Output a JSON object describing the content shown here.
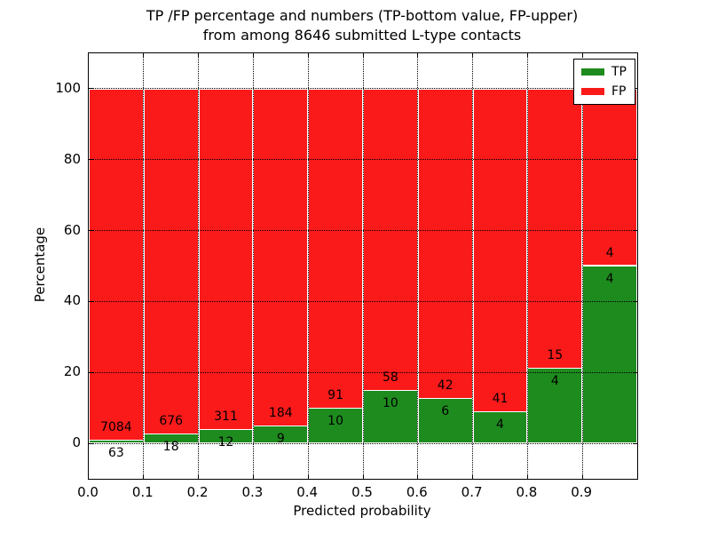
{
  "chart": {
    "title_line1": "TP /FP percentage and numbers (TP-bottom value, FP-upper)",
    "title_line2": "from among 8646 submitted L-type contacts",
    "xlabel": "Predicted probability",
    "ylabel": "Percentage"
  },
  "chart_data": {
    "type": "bar",
    "stacked": true,
    "normalized": "each bar totals 100%",
    "title": "TP /FP percentage and numbers (TP-bottom value, FP-upper) from among 8646 submitted L-type contacts",
    "xlabel": "Predicted probability",
    "ylabel": "Percentage",
    "total_contacts": 8646,
    "xlim": [
      0.0,
      1.0
    ],
    "ylim": [
      -10,
      110
    ],
    "x_ticks": [
      "0.0",
      "0.1",
      "0.2",
      "0.3",
      "0.4",
      "0.5",
      "0.6",
      "0.7",
      "0.8",
      "0.9"
    ],
    "y_ticks": [
      0,
      20,
      40,
      60,
      80,
      100
    ],
    "grid": "dotted",
    "legend_position": "upper right",
    "series": [
      {
        "name": "TP",
        "color": "#1e8b1e",
        "values": [
          63,
          18,
          12,
          9,
          10,
          10,
          6,
          4,
          4,
          4
        ]
      },
      {
        "name": "FP",
        "color": "#fa1a1a",
        "values": [
          7084,
          676,
          311,
          184,
          91,
          58,
          42,
          41,
          15,
          4
        ]
      }
    ],
    "bins": [
      {
        "range": "0.0-0.1",
        "tp": 63,
        "fp": 7084,
        "tp_percent": 0.88
      },
      {
        "range": "0.1-0.2",
        "tp": 18,
        "fp": 676,
        "tp_percent": 2.59
      },
      {
        "range": "0.2-0.3",
        "tp": 12,
        "fp": 311,
        "tp_percent": 3.72
      },
      {
        "range": "0.3-0.4",
        "tp": 9,
        "fp": 184,
        "tp_percent": 4.66
      },
      {
        "range": "0.4-0.5",
        "tp": 10,
        "fp": 91,
        "tp_percent": 9.9
      },
      {
        "range": "0.5-0.6",
        "tp": 10,
        "fp": 58,
        "tp_percent": 14.71
      },
      {
        "range": "0.6-0.7",
        "tp": 6,
        "fp": 42,
        "tp_percent": 12.5
      },
      {
        "range": "0.7-0.8",
        "tp": 4,
        "fp": 41,
        "tp_percent": 8.89
      },
      {
        "range": "0.8-0.9",
        "tp": 4,
        "fp": 15,
        "tp_percent": 21.05
      },
      {
        "range": "0.9-1.0",
        "tp": 4,
        "fp": 4,
        "tp_percent": 50.0
      }
    ]
  }
}
